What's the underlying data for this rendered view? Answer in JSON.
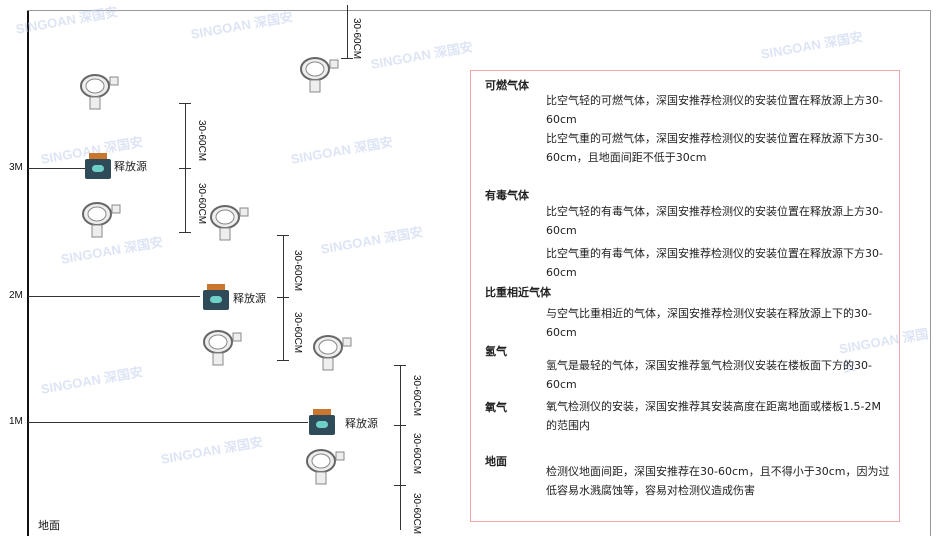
{
  "levels": {
    "l3": "3M",
    "l2": "2M",
    "l1": "1M",
    "ground": "地面"
  },
  "source_label": "释放源",
  "dimension_label": "30-60CM",
  "watermark": "SINGOAN 深国安",
  "info": {
    "sections": [
      {
        "title": "可燃气体",
        "paragraphs": [
          "比空气轻的可燃气体，深国安推荐检测仪的安装位置在释放源上方30-60cm",
          "比空气重的可燃气体，深国安推荐检测仪的安装位置在释放源下方30-60cm，且地面间距不低于30cm"
        ]
      },
      {
        "title": "有毒气体",
        "paragraphs": [
          "比空气轻的有毒气体，深国安推荐检测仪的安装位置在释放源上方30-60cm",
          "比空气重的有毒气体，深国安推荐检测仪的安装位置在释放源下方30-60cm"
        ]
      },
      {
        "title": "比重相近气体",
        "paragraphs": [
          "与空气比重相近的气体，深国安推荐检测仪安装在释放源上下的30-60cm"
        ]
      },
      {
        "title": "氢气",
        "paragraphs": [
          "氢气是最轻的气体，深国安推荐氢气检测仪安装在楼板面下方的30-60cm"
        ]
      },
      {
        "title": "氧气",
        "paragraphs": [
          "氧气检测仪的安装，深国安推荐其安装高度在距离地面或楼板1.5-2M的范围内"
        ]
      },
      {
        "title": "地面",
        "paragraphs": [
          "检测仪地面间距，深国安推荐在30-60cm，且不得小于30cm，因为过低容易水溅腐蚀等，容易对检测仪造成伤害"
        ]
      }
    ]
  },
  "colors": {
    "info_border": "#f3a6a6",
    "source_body": "#2f4b5a",
    "source_cap": "#c9772e",
    "watermark": "#c7d3ee"
  }
}
